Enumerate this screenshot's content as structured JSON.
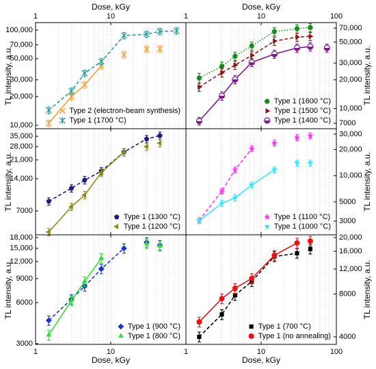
{
  "minor_xticks": [
    2,
    3,
    4,
    5,
    6,
    7,
    8,
    9,
    20,
    30,
    40,
    50,
    60,
    70,
    80,
    90
  ],
  "chart_data": [
    {
      "type": "scatter",
      "xscale": "log",
      "yscale": "log",
      "xlim": [
        1,
        100
      ],
      "xticks": [
        1,
        10
      ],
      "x_tick_labels": "top",
      "xlabel": "Dose, kGy",
      "ylim": [
        9200,
        120000
      ],
      "y_axis_side": "left",
      "ylabel": "TL intensity, a.u.",
      "legend": "lower right",
      "yticks": [
        {
          "value": 10000,
          "label": "10,000"
        },
        {
          "value": 20000,
          "label": "20,000"
        },
        {
          "value": 30000,
          "label": "30,000"
        },
        {
          "value": 50000,
          "label": "50,000"
        },
        {
          "value": 70000,
          "label": "70,000"
        },
        {
          "value": 100000,
          "label": "100,000"
        }
      ],
      "series": [
        {
          "name": "Type 2 (electron-beam synthesis)",
          "color": "#f0a030",
          "marker": "x",
          "line": {
            "style": "solid",
            "x_range": [
              1.5,
              7.5
            ]
          },
          "x": [
            1.5,
            3,
            4.5,
            7.5,
            15,
            30,
            45
          ],
          "values": [
            10500,
            20000,
            26600,
            42300,
            55000,
            63000,
            63500
          ],
          "errors": [
            800,
            1600,
            2100,
            3400,
            4400,
            5000,
            5000
          ]
        },
        {
          "name": "Type 1 (1700 °C)",
          "color": "#2a9d9d",
          "marker": "asterisk",
          "line": {
            "style": "dashed",
            "x_range": [
              1.5,
              75
            ]
          },
          "x": [
            1.5,
            3,
            4.5,
            7.5,
            15,
            30,
            45,
            75
          ],
          "values": [
            14400,
            22900,
            35200,
            46700,
            87500,
            90600,
            96800,
            98500
          ],
          "errors": [
            1200,
            1800,
            2800,
            3700,
            7000,
            7200,
            7700,
            7900
          ]
        }
      ]
    },
    {
      "type": "scatter",
      "xscale": "log",
      "yscale": "log",
      "xlim": [
        1,
        100
      ],
      "xticks": [
        1,
        10,
        100
      ],
      "x_tick_labels": "top",
      "xlabel": "Dose, kGy",
      "ylim": [
        6130,
        80000
      ],
      "y_axis_side": "right",
      "ylabel": "TL intensity, a.u.",
      "legend": "lower right",
      "yticks": [
        7000,
        {
          "value": 10000,
          "label": "10,000"
        },
        {
          "value": 20000,
          "label": "20,000"
        },
        {
          "value": 30000,
          "label": "30,000"
        },
        {
          "value": 50000,
          "label": "50,000"
        },
        {
          "value": 70000,
          "label": "70,000"
        }
      ],
      "series": [
        {
          "name": "Type 1 (1600 °C)",
          "color": "#1a8a1a",
          "marker": "hexagon",
          "line": {
            "style": "dotted",
            "x_range": [
              1.5,
              45
            ]
          },
          "x": [
            1.5,
            3,
            4.5,
            7.5,
            15,
            30,
            45
          ],
          "values": [
            20900,
            27700,
            35500,
            45500,
            64400,
            68900,
            71100
          ],
          "errors": [
            2500,
            3000,
            3500,
            4500,
            6500,
            7000,
            7000
          ]
        },
        {
          "name": "Type 1 (1500 °C)",
          "color": "#8b1a1a",
          "marker": "triangle-right",
          "line": {
            "style": "dashed",
            "x_range": [
              1.5,
              45
            ]
          },
          "x": [
            1.5,
            3,
            4.5,
            7.5,
            15,
            30,
            45
          ],
          "values": [
            16800,
            23800,
            28600,
            36100,
            51100,
            56400,
            57300
          ],
          "errors": [
            1700,
            2400,
            2900,
            3600,
            5100,
            5600,
            5700
          ]
        },
        {
          "name": "Type 1 (1400 °C)",
          "color": "#7b1a8b",
          "marker": "half-circle",
          "line": {
            "style": "solid",
            "x_range": [
              1.5,
              45
            ]
          },
          "x": [
            1.5,
            3,
            4.5,
            7.5,
            15,
            30,
            45,
            75
          ],
          "values": [
            7370,
            13600,
            20200,
            30500,
            37300,
            43300,
            44700,
            43300
          ],
          "errors": [
            700,
            1400,
            2000,
            3000,
            3700,
            4300,
            4500,
            4300
          ]
        }
      ]
    },
    {
      "type": "scatter",
      "xscale": "log",
      "yscale": "log",
      "xlim": [
        1,
        100
      ],
      "xticks": [
        1,
        10
      ],
      "x_tick_labels": "none",
      "ylim": [
        4180,
        41200
      ],
      "y_axis_side": "left",
      "ylabel": "TL intensity, a.u.",
      "legend": "lower right",
      "yticks": [
        7000,
        {
          "value": 14000,
          "label": "14,000"
        },
        {
          "value": 21000,
          "label": "21,000"
        },
        {
          "value": 28000,
          "label": "28,000"
        },
        {
          "value": 35000,
          "label": "35,000"
        }
      ],
      "series": [
        {
          "name": "Type 1 (1300 °C)",
          "color": "#1a1a7a",
          "marker": "pentagon",
          "line": {
            "style": "dashed",
            "x_range": [
              1.5,
              45
            ]
          },
          "x": [
            1.5,
            3,
            4.5,
            7.5,
            15,
            30,
            45
          ],
          "values": [
            8610,
            11400,
            13600,
            16500,
            24900,
            33000,
            35500
          ],
          "errors": [
            700,
            900,
            1100,
            1300,
            2000,
            2600,
            2800
          ]
        },
        {
          "name": "Type 1 (1200 °C)",
          "color": "#8b8b1a",
          "marker": "triangle-left",
          "line": {
            "style": "solid",
            "x_range": [
              1.5,
              15
            ]
          },
          "x": [
            1.5,
            3,
            4.5,
            7.5,
            15,
            30,
            45
          ],
          "values": [
            4440,
            7660,
            9840,
            16000,
            24900,
            28000,
            30200
          ],
          "errors": [
            350,
            600,
            800,
            1300,
            2000,
            2200,
            2400
          ]
        }
      ]
    },
    {
      "type": "scatter",
      "xscale": "log",
      "yscale": "log",
      "xlim": [
        1,
        100
      ],
      "xticks": [
        1,
        10,
        100
      ],
      "x_tick_labels": "none",
      "ylim": [
        2090,
        34700
      ],
      "y_axis_side": "right",
      "ylabel": "TL intensity, a.u.",
      "legend": "lower right",
      "yticks": [
        3000,
        5000,
        {
          "value": 10000,
          "label": "10,000"
        },
        {
          "value": 20000,
          "label": "20,000"
        },
        {
          "value": 30000,
          "label": "30,000"
        }
      ],
      "series": [
        {
          "name": "Type 1 (1100 °C)",
          "color": "#ff33ff",
          "marker": "star",
          "line": {
            "style": "dashed",
            "x_range": [
              1.5,
              7.5
            ]
          },
          "x": [
            1.5,
            3,
            4.5,
            7.5,
            15,
            30,
            45
          ],
          "values": [
            3060,
            6650,
            11700,
            20500,
            23700,
            27400,
            28900
          ],
          "errors": [
            250,
            500,
            900,
            1600,
            1900,
            2200,
            2300
          ]
        },
        {
          "name": "Type 1 (1000 °C)",
          "color": "#33e5ff",
          "marker": "triangle-down",
          "line": {
            "style": "solid",
            "x_range": [
              1.5,
              15
            ]
          },
          "x": [
            1.5,
            3,
            4.5,
            7.5,
            15,
            30,
            45
          ],
          "values": [
            3060,
            4810,
            5560,
            7840,
            11700,
            14000,
            14000
          ],
          "errors": [
            250,
            380,
            450,
            630,
            900,
            1100,
            1100
          ]
        }
      ]
    },
    {
      "type": "scatter",
      "xscale": "log",
      "yscale": "log",
      "xlim": [
        1,
        100
      ],
      "xticks": [
        1,
        10
      ],
      "x_tick_labels": "bottom",
      "xlabel": "Dose, kGy",
      "ylim": [
        2965,
        18840
      ],
      "y_axis_side": "left",
      "ylabel": "TL intensity, a.u.",
      "legend": "lower right",
      "yticks": [
        3000,
        6000,
        9000,
        {
          "value": 12000,
          "label": "12,000"
        },
        {
          "value": 15000,
          "label": "15,000"
        },
        {
          "value": 18000,
          "label": "18,000"
        }
      ],
      "series": [
        {
          "name": "Type 1 (900 °C)",
          "color": "#1a33cc",
          "marker": "diamond",
          "line": {
            "style": "dashed",
            "x_range": [
              1.5,
              15
            ]
          },
          "x": [
            1.5,
            3,
            4.5,
            7.5,
            15,
            30,
            45
          ],
          "values": [
            4440,
            6350,
            7910,
            10600,
            15000,
            16600,
            15800
          ],
          "errors": [
            350,
            500,
            630,
            850,
            1200,
            1300,
            1300
          ]
        },
        {
          "name": "Type 1 (800 °C)",
          "color": "#33dd33",
          "marker": "triangle-up",
          "line": {
            "style": "solid",
            "x_range": [
              1.5,
              7.5
            ]
          },
          "x": [
            1.5,
            3,
            4.5,
            7.5,
            30,
            45
          ],
          "values": [
            3480,
            6210,
            8570,
            12700,
            16200,
            15600
          ],
          "errors": [
            280,
            500,
            690,
            1000,
            1300,
            1250
          ]
        }
      ]
    },
    {
      "type": "scatter",
      "xscale": "log",
      "yscale": "log",
      "xlim": [
        1,
        100
      ],
      "xticks": [
        1,
        10,
        100
      ],
      "x_tick_labels": "bottom",
      "xlabel": "Dose, kGy",
      "ylim": [
        3540,
        20900
      ],
      "y_axis_side": "right",
      "ylabel": "TL intensity, a.u.",
      "legend": "lower right",
      "yticks": [
        4000,
        8000,
        {
          "value": 12000,
          "label": "12,000"
        },
        {
          "value": 16000,
          "label": "16,000"
        },
        {
          "value": 20000,
          "label": "20,000"
        }
      ],
      "series": [
        {
          "name": "Type 1 (700 °C)",
          "color": "#000000",
          "marker": "square",
          "line": {
            "style": "dashed",
            "x_range": [
              1.5,
              30
            ]
          },
          "x": [
            1.5,
            3,
            4.5,
            7.5,
            15,
            30,
            45
          ],
          "values": [
            4000,
            5750,
            7850,
            9820,
            14700,
            15500,
            16600
          ],
          "errors": [
            320,
            460,
            630,
            790,
            1200,
            1200,
            1300
          ]
        },
        {
          "name": "Type 1 (no annealing)",
          "color": "#ee1111",
          "marker": "circle",
          "line": {
            "style": "solid",
            "x_range": [
              1.5,
              30
            ]
          },
          "x": [
            1.5,
            3,
            4.5,
            7.5,
            15,
            30,
            45
          ],
          "values": [
            5090,
            7430,
            8790,
            10300,
            15000,
            18300,
            18900
          ],
          "errors": [
            400,
            590,
            700,
            820,
            1200,
            1500,
            1500
          ]
        }
      ]
    }
  ]
}
